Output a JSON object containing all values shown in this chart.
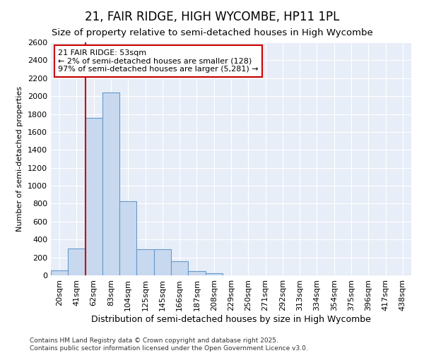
{
  "title": "21, FAIR RIDGE, HIGH WYCOMBE, HP11 1PL",
  "subtitle": "Size of property relative to semi-detached houses in High Wycombe",
  "xlabel": "Distribution of semi-detached houses by size in High Wycombe",
  "ylabel": "Number of semi-detached properties",
  "footer_line1": "Contains HM Land Registry data © Crown copyright and database right 2025.",
  "footer_line2": "Contains public sector information licensed under the Open Government Licence v3.0.",
  "annotation_line1": "21 FAIR RIDGE: 53sqm",
  "annotation_line2": "← 2% of semi-detached houses are smaller (128)",
  "annotation_line3": "97% of semi-detached houses are larger (5,281) →",
  "bar_categories": [
    "20sqm",
    "41sqm",
    "62sqm",
    "83sqm",
    "104sqm",
    "125sqm",
    "145sqm",
    "166sqm",
    "187sqm",
    "208sqm",
    "229sqm",
    "250sqm",
    "271sqm",
    "292sqm",
    "313sqm",
    "334sqm",
    "354sqm",
    "375sqm",
    "396sqm",
    "417sqm",
    "438sqm"
  ],
  "bar_values": [
    55,
    300,
    1760,
    2040,
    825,
    290,
    290,
    155,
    50,
    25,
    0,
    0,
    0,
    0,
    0,
    0,
    0,
    0,
    0,
    0,
    0
  ],
  "bar_color": "#c8d9ef",
  "bar_edge_color": "#6699cc",
  "property_line_color": "#cc0000",
  "ylim": [
    0,
    2600
  ],
  "yticks": [
    0,
    200,
    400,
    600,
    800,
    1000,
    1200,
    1400,
    1600,
    1800,
    2000,
    2200,
    2400,
    2600
  ],
  "bg_color": "#ffffff",
  "plot_bg_color": "#e8eef8",
  "grid_color": "#ffffff",
  "annotation_box_color": "#cc0000",
  "title_fontsize": 12,
  "subtitle_fontsize": 9.5,
  "xlabel_fontsize": 9,
  "ylabel_fontsize": 8,
  "tick_fontsize": 8,
  "annotation_fontsize": 8,
  "footer_fontsize": 6.5
}
